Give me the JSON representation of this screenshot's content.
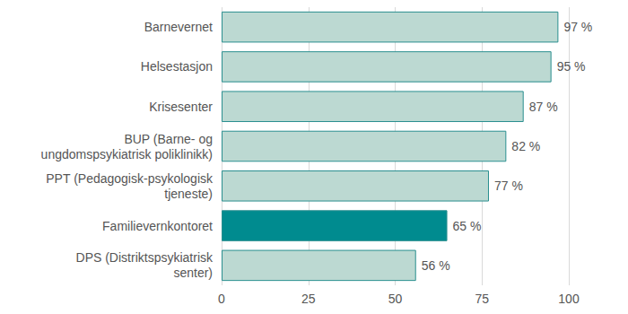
{
  "chart_data": {
    "type": "bar",
    "orientation": "horizontal",
    "categories": [
      "Barnevernet",
      "Helsestasjon",
      "Krisesenter",
      "BUP (Barne- og\nungdomspsykiatrisk poliklinikk)",
      "PPT (Pedagogisk-psykologisk\ntjeneste)",
      "Familievernkontoret",
      "DPS (Distriktspsykiatrisk\nsenter)"
    ],
    "values": [
      97,
      95,
      87,
      82,
      77,
      65,
      56
    ],
    "value_labels": [
      "97 %",
      "95 %",
      "87 %",
      "82 %",
      "77 %",
      "65 %",
      "56 %"
    ],
    "colors": [
      "#bcd9d2",
      "#bcd9d2",
      "#bcd9d2",
      "#bcd9d2",
      "#bcd9d2",
      "#008b8f",
      "#bcd9d2"
    ],
    "xlim": [
      0,
      100
    ],
    "xticks": [
      0,
      25,
      50,
      75,
      100
    ],
    "grid": true,
    "data_labels": true
  }
}
